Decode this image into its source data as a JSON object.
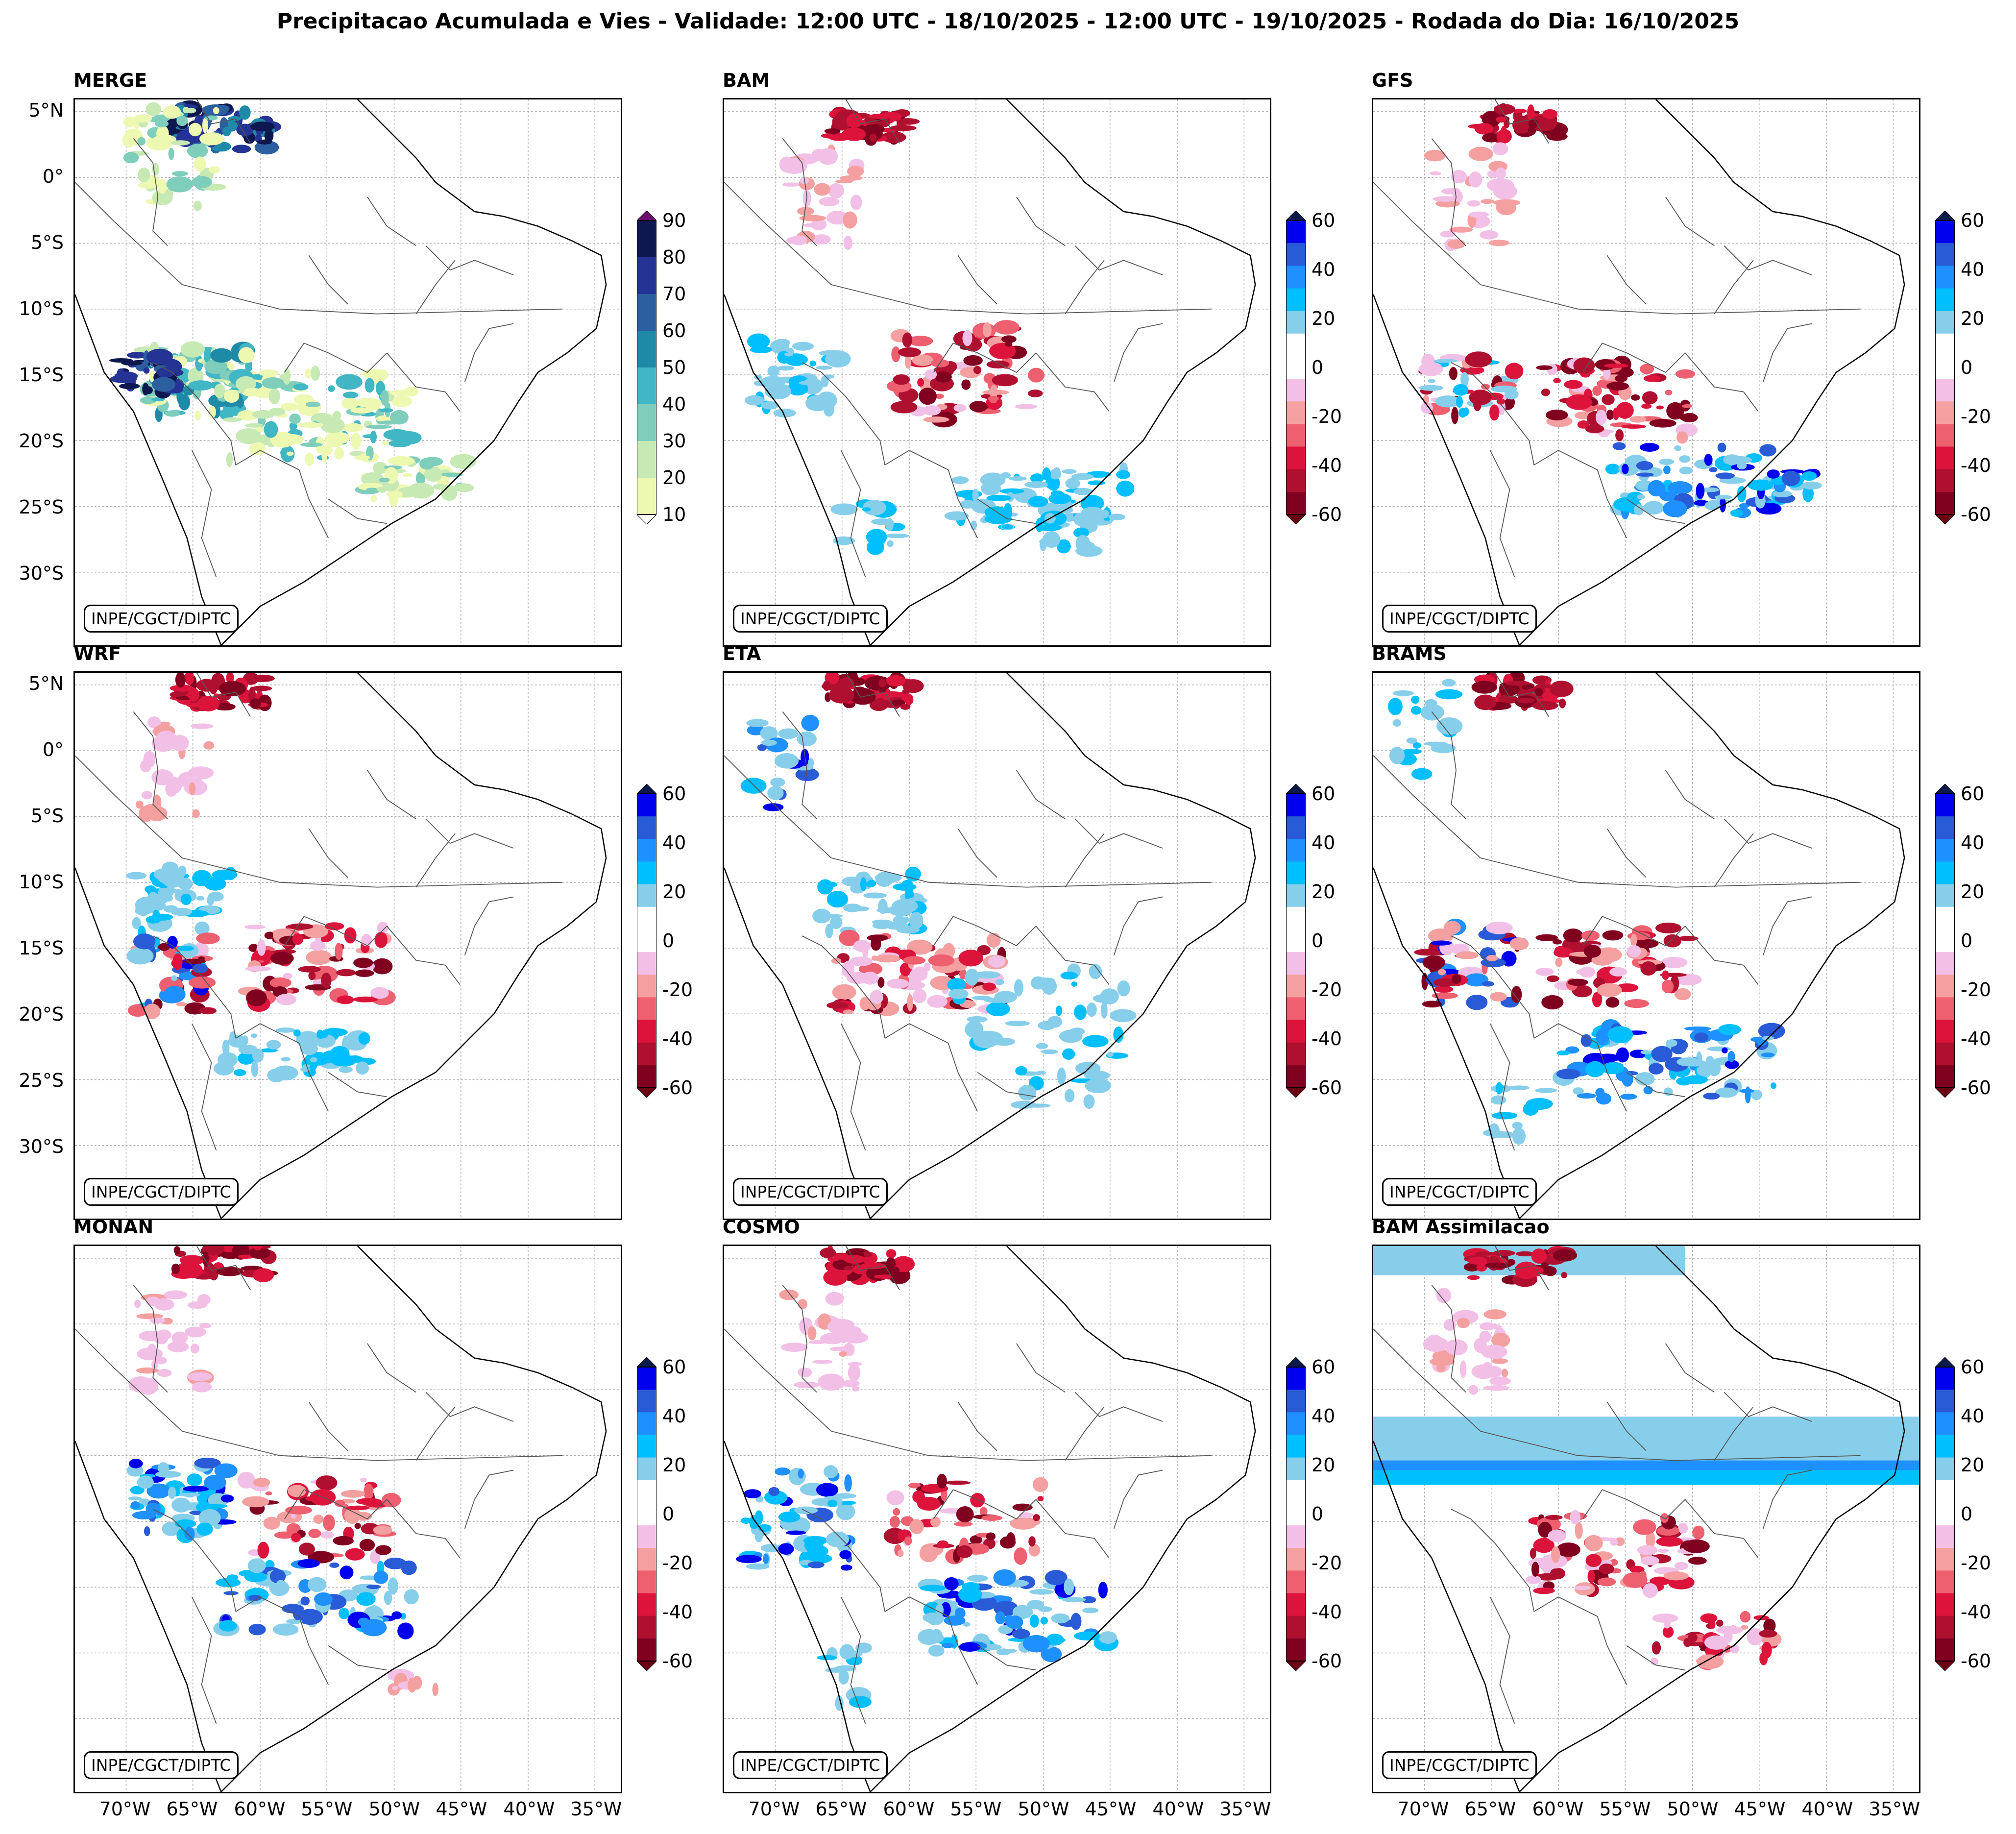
{
  "title": "Precipitacao Acumulada e Vies - Validade: 12:00 UTC - 18/10/2025 - 12:00 UTC - 19/10/2025 - Rodada do Dia: 16/10/2025",
  "credit": "INPE/CGCT/DIPTC",
  "lat_ticks": [
    "5°N",
    "0°",
    "5°S",
    "10°S",
    "15°S",
    "20°S",
    "25°S",
    "30°S"
  ],
  "lon_ticks": [
    "70°W",
    "65°W",
    "60°W",
    "55°W",
    "50°W",
    "45°W",
    "40°W",
    "35°W"
  ],
  "merge_scale": {
    "labels": [
      "90",
      "80",
      "70",
      "60",
      "50",
      "40",
      "30",
      "20",
      "10"
    ],
    "colors": [
      "#0d1850",
      "#253494",
      "#2c5fa0",
      "#1f8aa8",
      "#41b6c4",
      "#7fcdbb",
      "#c7e9b4",
      "#edf8b1"
    ],
    "extend_top": "#6a0f6e"
  },
  "bias_scale": {
    "labels": [
      "60",
      "40",
      "20",
      "0",
      "-20",
      "-40",
      "-60"
    ],
    "colors": [
      "#0000ee",
      "#2a5bd7",
      "#1e90ff",
      "#00bfff",
      "#87ceeb",
      "#ffffff",
      "#ffffff",
      "#f2c0e6",
      "#f5a0a0",
      "#ee6070",
      "#dc143c",
      "#b01030",
      "#800020"
    ],
    "extend_top": "#0b1a4a",
    "extend_bottom": "#6b0014"
  },
  "panels": [
    {
      "name": "MERGE",
      "type": "precip"
    },
    {
      "name": "BAM",
      "type": "bias"
    },
    {
      "name": "GFS",
      "type": "bias"
    },
    {
      "name": "WRF",
      "type": "bias"
    },
    {
      "name": "ETA",
      "type": "bias"
    },
    {
      "name": "BRAMS",
      "type": "bias"
    },
    {
      "name": "MONAN",
      "type": "bias"
    },
    {
      "name": "COSMO",
      "type": "bias"
    },
    {
      "name": "BAM Assimilacao",
      "type": "bias"
    }
  ]
}
